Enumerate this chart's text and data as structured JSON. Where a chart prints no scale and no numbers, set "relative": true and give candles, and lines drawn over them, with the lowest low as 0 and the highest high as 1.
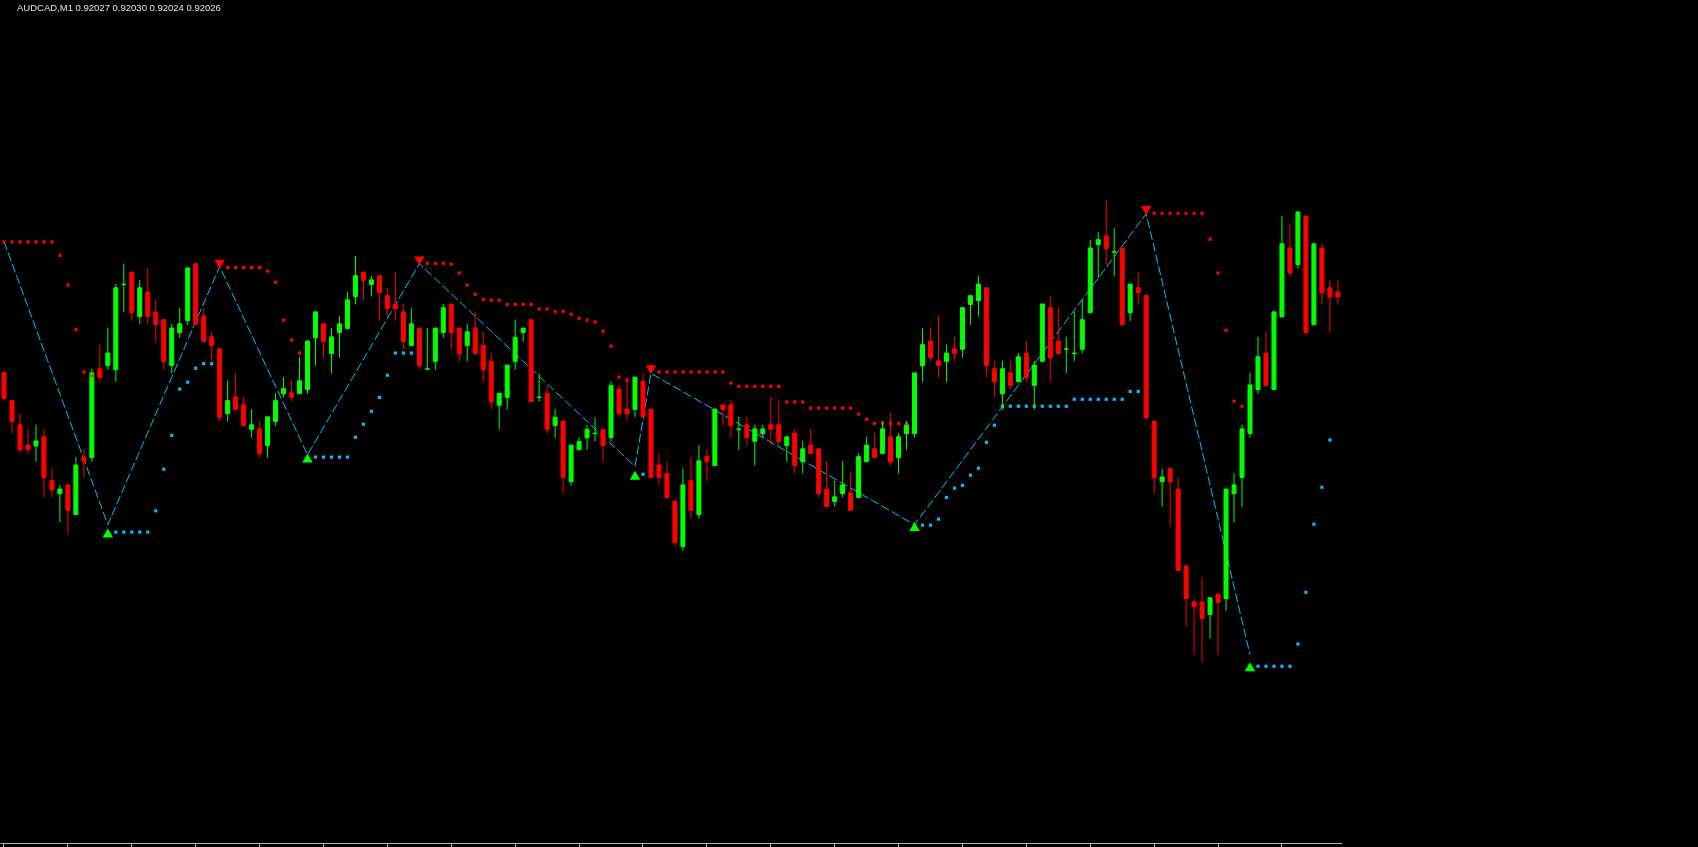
{
  "chart_data": {
    "type": "candlestick",
    "title": "AUDCAD,M1 0.92027 0.92030 0.92024 0.92026",
    "relative": true,
    "categories": [
      null,
      null,
      null,
      null,
      null,
      null,
      null,
      null,
      null,
      null,
      null,
      null,
      null,
      null,
      null,
      null,
      null,
      null,
      null,
      null,
      null,
      null,
      null,
      null,
      null,
      null,
      null,
      null,
      null,
      null,
      null,
      null,
      null,
      null,
      null,
      null,
      null,
      null,
      null,
      null,
      null,
      null,
      null,
      null,
      null,
      null,
      null,
      null,
      null,
      null,
      null,
      null,
      null,
      null,
      null,
      null,
      null,
      null,
      null,
      null,
      null,
      null,
      null,
      null,
      null,
      null,
      null,
      null,
      null,
      null,
      null,
      null,
      null,
      null,
      null,
      null,
      null,
      null,
      null,
      null,
      null,
      null,
      null,
      null,
      null,
      null,
      null,
      null,
      null,
      null,
      null,
      null,
      null,
      null,
      null,
      null,
      null,
      null,
      null,
      null,
      null,
      null,
      null,
      null,
      null,
      null,
      null,
      null,
      null,
      null,
      null,
      null,
      null,
      null,
      null,
      null,
      null,
      null,
      null,
      null,
      null,
      null,
      null,
      null,
      null,
      null,
      null,
      null,
      null,
      null,
      null,
      null,
      null,
      null,
      null,
      null,
      null,
      null,
      null,
      null,
      null,
      null,
      null,
      null,
      null,
      null,
      null,
      null,
      null,
      null,
      null,
      null,
      null,
      null,
      null,
      null,
      null,
      null,
      null,
      null,
      null,
      null,
      null,
      null,
      null,
      null,
      null,
      null
    ],
    "ohlc": [
      [
        0.627,
        0.629,
        0.566,
        0.571
      ],
      [
        0.566,
        0.566,
        0.496,
        0.521
      ],
      [
        0.514,
        0.539,
        0.452,
        0.46
      ],
      [
        0.47,
        0.505,
        0.45,
        0.46
      ],
      [
        0.468,
        0.514,
        0.434,
        0.479
      ],
      [
        0.488,
        0.505,
        0.357,
        0.4
      ],
      [
        0.393,
        0.419,
        0.357,
        0.373
      ],
      [
        0.365,
        0.384,
        0.303,
        0.375
      ],
      [
        0.384,
        0.384,
        0.276,
        0.329
      ],
      [
        0.32,
        0.444,
        0.32,
        0.427
      ],
      [
        0.444,
        0.462,
        0.4,
        0.434
      ],
      [
        0.443,
        0.635,
        0.434,
        0.626
      ],
      [
        0.635,
        0.687,
        0.607,
        0.616
      ],
      [
        0.642,
        0.724,
        0.633,
        0.669
      ],
      [
        0.633,
        0.818,
        0.607,
        0.81
      ],
      [
        0.817,
        0.862,
        0.757,
        0.818
      ],
      [
        0.844,
        0.844,
        0.739,
        0.756
      ],
      [
        0.748,
        0.827,
        0.731,
        0.81
      ],
      [
        0.801,
        0.853,
        0.731,
        0.748
      ],
      [
        0.757,
        0.784,
        0.694,
        0.731
      ],
      [
        0.741,
        0.741,
        0.633,
        0.651
      ],
      [
        0.642,
        0.732,
        0.625,
        0.723
      ],
      [
        0.713,
        0.767,
        0.702,
        0.732
      ],
      [
        0.739,
        0.853,
        0.73,
        0.853
      ],
      [
        0.862,
        0.862,
        0.731,
        0.731
      ],
      [
        0.749,
        0.767,
        0.694,
        0.694
      ],
      [
        0.704,
        0.715,
        0.651,
        0.685
      ],
      [
        0.678,
        0.678,
        0.521,
        0.53
      ],
      [
        0.538,
        0.61,
        0.521,
        0.566
      ],
      [
        0.574,
        0.626,
        0.547,
        0.547
      ],
      [
        0.557,
        0.574,
        0.512,
        0.512
      ],
      [
        0.504,
        0.548,
        0.486,
        0.514
      ],
      [
        0.505,
        0.522,
        0.443,
        0.452
      ],
      [
        0.469,
        0.531,
        0.443,
        0.531
      ],
      [
        0.521,
        0.583,
        0.512,
        0.566
      ],
      [
        0.581,
        0.617,
        0.573,
        0.592
      ],
      [
        0.583,
        0.609,
        0.564,
        0.573
      ],
      [
        0.581,
        0.661,
        0.581,
        0.609
      ],
      [
        0.59,
        0.695,
        0.581,
        0.695
      ],
      [
        0.702,
        0.758,
        0.642,
        0.758
      ],
      [
        0.732,
        0.732,
        0.659,
        0.694
      ],
      [
        0.668,
        0.723,
        0.625,
        0.704
      ],
      [
        0.713,
        0.749,
        0.659,
        0.732
      ],
      [
        0.722,
        0.801,
        0.722,
        0.784
      ],
      [
        0.791,
        0.879,
        0.774,
        0.836
      ],
      [
        0.844,
        0.844,
        0.782,
        0.826
      ],
      [
        0.817,
        0.836,
        0.791,
        0.827
      ],
      [
        0.836,
        0.836,
        0.739,
        0.8
      ],
      [
        0.793,
        0.81,
        0.748,
        0.765
      ],
      [
        0.775,
        0.844,
        0.739,
        0.765
      ],
      [
        0.758,
        0.775,
        0.677,
        0.694
      ],
      [
        0.685,
        0.767,
        0.685,
        0.732
      ],
      [
        0.723,
        0.723,
        0.633,
        0.642
      ],
      [
        0.634,
        0.723,
        0.633,
        0.635
      ],
      [
        0.651,
        0.723,
        0.633,
        0.723
      ],
      [
        0.713,
        0.775,
        0.702,
        0.767
      ],
      [
        0.775,
        0.775,
        0.677,
        0.713
      ],
      [
        0.723,
        0.723,
        0.651,
        0.668
      ],
      [
        0.685,
        0.732,
        0.651,
        0.715
      ],
      [
        0.723,
        0.758,
        0.668,
        0.668
      ],
      [
        0.686,
        0.715,
        0.607,
        0.633
      ],
      [
        0.651,
        0.669,
        0.547,
        0.564
      ],
      [
        0.556,
        0.582,
        0.504,
        0.582
      ],
      [
        0.573,
        0.643,
        0.547,
        0.643
      ],
      [
        0.651,
        0.741,
        0.633,
        0.703
      ],
      [
        0.713,
        0.723,
        0.694,
        0.723
      ],
      [
        0.741,
        0.741,
        0.564,
        0.564
      ],
      [
        0.573,
        0.625,
        0.564,
        0.574
      ],
      [
        0.582,
        0.599,
        0.495,
        0.504
      ],
      [
        0.512,
        0.548,
        0.486,
        0.53
      ],
      [
        0.522,
        0.522,
        0.365,
        0.4
      ],
      [
        0.391,
        0.47,
        0.383,
        0.47
      ],
      [
        0.46,
        0.487,
        0.46,
        0.478
      ],
      [
        0.486,
        0.513,
        0.46,
        0.504
      ],
      [
        0.495,
        0.53,
        0.478,
        0.496
      ],
      [
        0.504,
        0.504,
        0.434,
        0.469
      ],
      [
        0.486,
        0.608,
        0.478,
        0.599
      ],
      [
        0.591,
        0.599,
        0.53,
        0.538
      ],
      [
        0.548,
        0.617,
        0.521,
        0.538
      ],
      [
        0.547,
        0.617,
        0.53,
        0.617
      ],
      [
        0.608,
        0.625,
        0.53,
        0.532
      ],
      [
        0.548,
        0.548,
        0.4,
        0.4
      ],
      [
        0.427,
        0.452,
        0.383,
        0.4
      ],
      [
        0.409,
        0.435,
        0.357,
        0.357
      ],
      [
        0.349,
        0.349,
        0.251,
        0.259
      ],
      [
        0.251,
        0.419,
        0.242,
        0.384
      ],
      [
        0.393,
        0.445,
        0.311,
        0.329
      ],
      [
        0.32,
        0.47,
        0.311,
        0.436
      ],
      [
        0.445,
        0.462,
        0.391,
        0.434
      ],
      [
        0.426,
        0.548,
        0.426,
        0.548
      ],
      [
        0.557,
        0.557,
        0.512,
        0.547
      ],
      [
        0.557,
        0.566,
        0.486,
        0.512
      ],
      [
        0.504,
        0.531,
        0.46,
        0.505
      ],
      [
        0.514,
        0.531,
        0.469,
        0.486
      ],
      [
        0.478,
        0.514,
        0.426,
        0.505
      ],
      [
        0.495,
        0.514,
        0.486,
        0.505
      ],
      [
        0.514,
        0.574,
        0.469,
        0.504
      ],
      [
        0.514,
        0.566,
        0.469,
        0.478
      ],
      [
        0.469,
        0.488,
        0.434,
        0.488
      ],
      [
        0.496,
        0.505,
        0.409,
        0.426
      ],
      [
        0.434,
        0.479,
        0.409,
        0.462
      ],
      [
        0.47,
        0.505,
        0.452,
        0.452
      ],
      [
        0.462,
        0.462,
        0.357,
        0.365
      ],
      [
        0.375,
        0.436,
        0.337,
        0.337
      ],
      [
        0.348,
        0.393,
        0.337,
        0.358
      ],
      [
        0.365,
        0.436,
        0.357,
        0.384
      ],
      [
        0.367,
        0.41,
        0.329,
        0.329
      ],
      [
        0.357,
        0.453,
        0.357,
        0.445
      ],
      [
        0.434,
        0.488,
        0.434,
        0.47
      ],
      [
        0.462,
        0.496,
        0.443,
        0.443
      ],
      [
        0.452,
        0.522,
        0.452,
        0.505
      ],
      [
        0.488,
        0.54,
        0.426,
        0.434
      ],
      [
        0.443,
        0.496,
        0.409,
        0.488
      ],
      [
        0.495,
        0.522,
        0.46,
        0.514
      ],
      [
        0.495,
        0.626,
        0.486,
        0.626
      ],
      [
        0.642,
        0.723,
        0.607,
        0.687
      ],
      [
        0.695,
        0.723,
        0.651,
        0.659
      ],
      [
        0.652,
        0.75,
        0.616,
        0.642
      ],
      [
        0.651,
        0.687,
        0.607,
        0.669
      ],
      [
        0.678,
        0.704,
        0.651,
        0.668
      ],
      [
        0.677,
        0.767,
        0.659,
        0.767
      ],
      [
        0.774,
        0.793,
        0.73,
        0.793
      ],
      [
        0.782,
        0.836,
        0.748,
        0.818
      ],
      [
        0.81,
        0.81,
        0.616,
        0.642
      ],
      [
        0.635,
        0.652,
        0.573,
        0.607
      ],
      [
        0.581,
        0.652,
        0.547,
        0.635
      ],
      [
        0.626,
        0.652,
        0.59,
        0.599
      ],
      [
        0.607,
        0.669,
        0.607,
        0.661
      ],
      [
        0.669,
        0.695,
        0.607,
        0.616
      ],
      [
        0.599,
        0.652,
        0.547,
        0.643
      ],
      [
        0.651,
        0.775,
        0.651,
        0.775
      ],
      [
        0.767,
        0.793,
        0.607,
        0.659
      ],
      [
        0.695,
        0.767,
        0.668,
        0.668
      ],
      [
        0.677,
        0.704,
        0.625,
        0.678
      ],
      [
        0.668,
        0.758,
        0.651,
        0.669
      ],
      [
        0.677,
        0.784,
        0.668,
        0.741
      ],
      [
        0.756,
        0.914,
        0.756,
        0.896
      ],
      [
        0.903,
        0.931,
        0.831,
        0.914
      ],
      [
        0.922,
        1.0,
        0.86,
        0.895
      ],
      [
        0.887,
        0.939,
        0.834,
        0.888
      ],
      [
        0.896,
        0.896,
        0.73,
        0.73
      ],
      [
        0.756,
        0.818,
        0.738,
        0.818
      ],
      [
        0.81,
        0.844,
        0.773,
        0.799
      ],
      [
        0.793,
        0.793,
        0.529,
        0.529
      ],
      [
        0.522,
        0.522,
        0.365,
        0.399
      ],
      [
        0.391,
        0.419,
        0.337,
        0.401
      ],
      [
        0.419,
        0.419,
        0.294,
        0.391
      ],
      [
        0.375,
        0.401,
        0.199,
        0.199
      ],
      [
        0.209,
        0.209,
        0.078,
        0.138
      ],
      [
        0.131,
        0.14,
        0.017,
        0.121
      ],
      [
        0.131,
        0.183,
        0.0,
        0.095
      ],
      [
        0.104,
        0.14,
        0.052,
        0.14
      ],
      [
        0.148,
        0.148,
        0.017,
        0.13
      ],
      [
        0.138,
        0.375,
        0.112,
        0.375
      ],
      [
        0.365,
        0.41,
        0.303,
        0.384
      ],
      [
        0.4,
        0.514,
        0.337,
        0.505
      ],
      [
        0.495,
        0.626,
        0.486,
        0.6
      ],
      [
        0.59,
        0.704,
        0.581,
        0.661
      ],
      [
        0.669,
        0.715,
        0.599,
        0.599
      ],
      [
        0.59,
        0.758,
        0.59,
        0.758
      ],
      [
        0.747,
        0.965,
        0.747,
        0.905
      ],
      [
        0.896,
        0.948,
        0.834,
        0.842
      ],
      [
        0.86,
        0.974,
        0.851,
        0.974
      ],
      [
        0.965,
        0.965,
        0.713,
        0.713
      ],
      [
        0.73,
        0.905,
        0.73,
        0.905
      ],
      [
        0.896,
        0.905,
        0.773,
        0.799
      ],
      [
        0.81,
        0.827,
        0.713,
        0.79
      ],
      [
        0.801,
        0.827,
        0.773,
        0.79
      ]
    ],
    "colors": [
      "#ff0000",
      "#ff0000",
      "#ff0000",
      "#ff0000",
      "#00ff00",
      "#ff0000",
      "#ff0000",
      "#00ff00",
      "#ff0000",
      "#00ff00",
      "#ff0000",
      "#00ff00",
      "#ff0000",
      "#00ff00",
      "#00ff00",
      "#00ff00",
      "#ff0000",
      "#00ff00",
      "#ff0000",
      "#ff0000",
      "#ff0000",
      "#00ff00",
      "#00ff00",
      "#00ff00",
      "#ff0000",
      "#ff0000",
      "#ff0000",
      "#ff0000",
      "#00ff00",
      "#ff0000",
      "#ff0000",
      "#00ff00",
      "#ff0000",
      "#00ff00",
      "#00ff00",
      "#00ff00",
      "#ff0000",
      "#00ff00",
      "#00ff00",
      "#00ff00",
      "#ff0000",
      "#00ff00",
      "#00ff00",
      "#00ff00",
      "#00ff00",
      "#ff0000",
      "#00ff00",
      "#ff0000",
      "#ff0000",
      "#ff0000",
      "#ff0000",
      "#00ff00",
      "#ff0000",
      "#00ff00",
      "#00ff00",
      "#00ff00",
      "#ff0000",
      "#ff0000",
      "#00ff00",
      "#ff0000",
      "#ff0000",
      "#ff0000",
      "#00ff00",
      "#00ff00",
      "#00ff00",
      "#00ff00",
      "#ff0000",
      "#00ff00",
      "#ff0000",
      "#00ff00",
      "#ff0000",
      "#00ff00",
      "#00ff00",
      "#00ff00",
      "#00ff00",
      "#ff0000",
      "#00ff00",
      "#ff0000",
      "#ff0000",
      "#00ff00",
      "#ff0000",
      "#ff0000",
      "#ff0000",
      "#ff0000",
      "#ff0000",
      "#00ff00",
      "#ff0000",
      "#00ff00",
      "#ff0000",
      "#00ff00",
      "#ff0000",
      "#ff0000",
      "#00ff00",
      "#ff0000",
      "#00ff00",
      "#00ff00",
      "#ff0000",
      "#ff0000",
      "#00ff00",
      "#ff0000",
      "#00ff00",
      "#ff0000",
      "#ff0000",
      "#ff0000",
      "#00ff00",
      "#00ff00",
      "#ff0000",
      "#00ff00",
      "#00ff00",
      "#ff0000",
      "#00ff00",
      "#ff0000",
      "#00ff00",
      "#00ff00",
      "#00ff00",
      "#00ff00",
      "#ff0000",
      "#ff0000",
      "#00ff00",
      "#ff0000",
      "#00ff00",
      "#00ff00",
      "#00ff00",
      "#ff0000",
      "#ff0000",
      "#00ff00",
      "#ff0000",
      "#00ff00",
      "#ff0000",
      "#00ff00",
      "#00ff00",
      "#ff0000",
      "#ff0000",
      "#00ff00",
      "#00ff00",
      "#00ff00",
      "#00ff00",
      "#00ff00",
      "#ff0000",
      "#00ff00",
      "#ff0000",
      "#00ff00",
      "#ff0000",
      "#ff0000",
      "#ff0000",
      "#00ff00",
      "#ff0000",
      "#ff0000",
      "#ff0000",
      "#ff0000",
      "#ff0000",
      "#00ff00",
      "#ff0000",
      "#00ff00",
      "#00ff00",
      "#00ff00",
      "#00ff00",
      "#00ff00",
      "#ff0000",
      "#00ff00",
      "#00ff00",
      "#ff0000",
      "#00ff00",
      "#ff0000",
      "#00ff00",
      "#ff0000",
      "#ff0000",
      "#ff0000"
    ],
    "series": [
      {
        "type": "scatter",
        "marker": "square",
        "color": "#ff0000",
        "values": [
          0.909,
          0.909,
          0.909,
          0.909,
          0.909,
          0.909,
          0.909,
          0.88,
          0.816,
          0.72,
          0.628,
          0.62,
          null,
          null,
          null,
          null,
          null,
          null,
          null,
          null,
          null,
          null,
          null,
          null,
          null,
          null,
          null,
          null,
          0.854,
          0.854,
          0.854,
          0.854,
          0.854,
          0.846,
          0.822,
          0.74,
          0.697,
          0.669,
          null,
          null,
          null,
          null,
          null,
          null,
          null,
          null,
          null,
          null,
          null,
          null,
          null,
          null,
          null,
          0.863,
          0.863,
          0.863,
          0.861,
          0.842,
          0.816,
          0.796,
          0.785,
          0.783,
          0.783,
          0.774,
          0.774,
          0.774,
          0.774,
          0.764,
          0.764,
          0.759,
          0.759,
          0.753,
          0.744,
          0.74,
          0.736,
          0.716,
          0.684,
          0.617,
          0.61,
          null,
          null,
          null,
          0.628,
          0.628,
          0.628,
          0.628,
          0.628,
          0.628,
          0.628,
          0.628,
          0.628,
          0.604,
          0.597,
          0.597,
          0.597,
          0.597,
          0.597,
          0.597,
          0.563,
          0.563,
          0.563,
          0.55,
          0.55,
          0.55,
          0.55,
          0.55,
          0.55,
          0.537,
          0.526,
          0.517,
          0.517,
          0.517,
          0.517,
          0.517,
          null,
          null,
          null,
          null,
          null,
          null,
          null,
          null,
          null,
          null,
          null,
          null,
          null,
          null,
          null,
          null,
          null,
          null,
          null,
          null,
          null,
          null,
          null,
          null,
          null,
          null,
          null,
          null,
          null,
          null,
          0.971,
          0.971,
          0.971,
          0.971,
          0.971,
          0.971,
          0.971,
          0.915,
          0.842,
          0.718,
          0.565,
          0.554,
          null,
          null,
          null,
          null,
          null,
          null,
          null,
          null,
          null,
          null,
          null,
          null
        ]
      },
      {
        "type": "scatter",
        "marker": "square",
        "color": "#00bfff",
        "values": [
          null,
          null,
          null,
          null,
          null,
          null,
          null,
          null,
          null,
          null,
          null,
          null,
          null,
          null,
          0.282,
          0.282,
          0.282,
          0.282,
          0.282,
          0.328,
          0.418,
          0.491,
          0.591,
          0.606,
          0.636,
          0.646,
          0.646,
          null,
          null,
          null,
          null,
          null,
          null,
          null,
          null,
          null,
          null,
          null,
          null,
          0.444,
          0.444,
          0.444,
          0.444,
          0.444,
          0.487,
          0.515,
          0.543,
          0.573,
          0.621,
          0.669,
          0.669,
          0.669,
          null,
          null,
          null,
          null,
          null,
          null,
          null,
          null,
          null,
          null,
          null,
          null,
          null,
          null,
          null,
          null,
          null,
          null,
          null,
          null,
          null,
          null,
          null,
          null,
          null,
          null,
          null,
          null,
          0.407,
          null,
          null,
          null,
          null,
          null,
          null,
          null,
          null,
          null,
          null,
          null,
          null,
          null,
          null,
          null,
          null,
          null,
          null,
          null,
          null,
          null,
          null,
          null,
          null,
          null,
          null,
          null,
          null,
          null,
          null,
          null,
          null,
          null,
          null,
          0.297,
          0.297,
          0.31,
          0.357,
          0.377,
          0.383,
          0.405,
          0.42,
          0.476,
          0.513,
          0.554,
          0.554,
          0.554,
          0.554,
          0.554,
          0.554,
          0.554,
          0.554,
          0.554,
          0.569,
          0.569,
          0.569,
          0.569,
          0.569,
          0.569,
          0.569,
          0.586,
          0.586,
          null,
          null,
          null,
          null,
          null,
          null,
          null,
          null,
          null,
          null,
          null,
          null,
          null,
          null,
          -0.008,
          -0.008,
          -0.008,
          -0.008,
          -0.008,
          0.04,
          0.152,
          0.299,
          0.379,
          0.481,
          null
        ]
      },
      {
        "type": "line",
        "line_style": "dashed",
        "color": "#00bfff",
        "values": [
          0.91,
          null,
          null,
          null,
          null,
          null,
          null,
          null,
          null,
          null,
          null,
          null,
          null,
          0.298,
          null,
          null,
          null,
          null,
          null,
          null,
          null,
          null,
          null,
          null,
          null,
          null,
          null,
          0.856,
          null,
          null,
          null,
          null,
          null,
          null,
          null,
          null,
          null,
          null,
          0.449,
          null,
          null,
          null,
          null,
          null,
          null,
          null,
          null,
          null,
          null,
          null,
          null,
          null,
          0.862,
          null,
          null,
          null,
          null,
          null,
          null,
          null,
          null,
          null,
          null,
          null,
          null,
          null,
          null,
          null,
          null,
          null,
          null,
          null,
          null,
          null,
          null,
          null,
          null,
          null,
          null,
          0.424,
          null,
          0.625,
          null,
          null,
          null,
          null,
          null,
          null,
          null,
          null,
          null,
          null,
          null,
          null,
          null,
          null,
          null,
          null,
          null,
          null,
          null,
          null,
          null,
          null,
          null,
          null,
          null,
          null,
          null,
          null,
          null,
          null,
          null,
          null,
          0.298,
          null,
          null,
          null,
          null,
          null,
          null,
          null,
          null,
          null,
          null,
          null,
          null,
          null,
          null,
          null,
          null,
          null,
          null,
          null,
          null,
          null,
          null,
          null,
          null,
          null,
          null,
          null,
          null,
          0.97,
          null,
          null,
          null,
          null,
          null,
          null,
          null,
          null,
          null,
          null,
          null,
          null,
          0.017,
          null,
          null,
          null,
          null,
          null,
          null,
          null,
          null,
          null,
          null,
          null
        ]
      },
      {
        "type": "scatter",
        "marker": "triangle",
        "color": "#00ff00",
        "values": [
          null,
          null,
          null,
          null,
          null,
          null,
          null,
          null,
          null,
          null,
          null,
          null,
          null,
          0.28,
          null,
          null,
          null,
          null,
          null,
          null,
          null,
          null,
          null,
          null,
          null,
          null,
          null,
          null,
          null,
          null,
          null,
          null,
          null,
          null,
          null,
          null,
          null,
          null,
          0.442,
          null,
          null,
          null,
          null,
          null,
          null,
          null,
          null,
          null,
          null,
          null,
          null,
          null,
          null,
          null,
          null,
          null,
          null,
          null,
          null,
          null,
          null,
          null,
          null,
          null,
          null,
          null,
          null,
          null,
          null,
          null,
          null,
          null,
          null,
          null,
          null,
          null,
          null,
          null,
          null,
          0.405,
          null,
          null,
          null,
          null,
          null,
          null,
          null,
          null,
          null,
          null,
          null,
          null,
          null,
          null,
          null,
          null,
          null,
          null,
          null,
          null,
          null,
          null,
          null,
          null,
          null,
          null,
          null,
          null,
          null,
          null,
          null,
          null,
          null,
          null,
          0.294,
          null,
          null,
          null,
          null,
          null,
          null,
          null,
          null,
          null,
          null,
          null,
          null,
          null,
          null,
          null,
          null,
          null,
          null,
          null,
          null,
          null,
          null,
          null,
          null,
          null,
          null,
          null,
          null,
          null,
          null,
          null,
          null,
          null,
          null,
          null,
          null,
          null,
          null,
          null,
          null,
          null,
          -0.009,
          null,
          null,
          null,
          null,
          null,
          null,
          null,
          null,
          null,
          null,
          null
        ]
      },
      {
        "type": "scatter",
        "marker": "triangle",
        "color": "#ff0000",
        "values": [
          null,
          null,
          null,
          null,
          null,
          null,
          null,
          null,
          null,
          null,
          null,
          null,
          null,
          null,
          null,
          null,
          null,
          null,
          null,
          null,
          null,
          null,
          null,
          null,
          null,
          null,
          null,
          0.861,
          null,
          null,
          null,
          null,
          null,
          null,
          null,
          null,
          null,
          null,
          null,
          null,
          null,
          null,
          null,
          null,
          null,
          null,
          null,
          null,
          null,
          null,
          null,
          null,
          0.868,
          null,
          null,
          null,
          null,
          null,
          null,
          null,
          null,
          null,
          null,
          null,
          null,
          null,
          null,
          null,
          null,
          null,
          null,
          null,
          null,
          null,
          null,
          null,
          null,
          null,
          null,
          null,
          null,
          0.633,
          null,
          null,
          null,
          null,
          null,
          null,
          null,
          null,
          null,
          null,
          null,
          null,
          null,
          null,
          null,
          null,
          null,
          null,
          null,
          null,
          null,
          null,
          null,
          null,
          null,
          null,
          null,
          null,
          null,
          null,
          null,
          null,
          null,
          null,
          null,
          null,
          null,
          null,
          null,
          null,
          null,
          null,
          null,
          null,
          null,
          null,
          null,
          null,
          null,
          null,
          null,
          null,
          null,
          null,
          null,
          null,
          null,
          null,
          null,
          null,
          null,
          0.977,
          null,
          null,
          null,
          null,
          null,
          null,
          null,
          null,
          null,
          null,
          null,
          null,
          null,
          null,
          null,
          null,
          null,
          null,
          null,
          null,
          null,
          null,
          null,
          null
        ]
      }
    ]
  }
}
